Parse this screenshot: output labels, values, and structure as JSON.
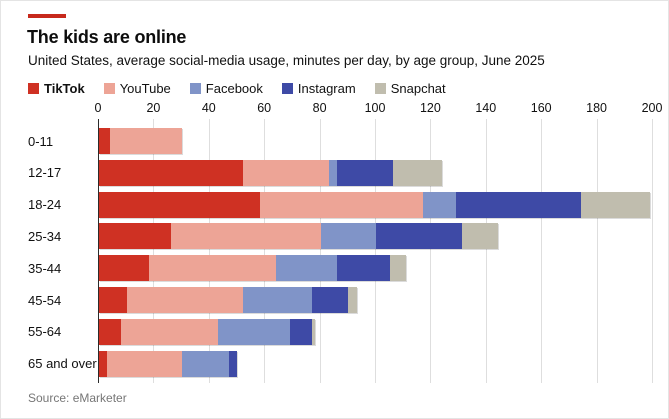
{
  "header": {
    "accent_color": "#c7291c",
    "title": "The kids are online",
    "subtitle": "United States, average social-media usage, minutes per day, by age group, June 2025"
  },
  "source": "Source: eMarketer",
  "chart_data": {
    "type": "bar",
    "orientation": "horizontal",
    "stacked": true,
    "title": "The kids are online",
    "subtitle": "United States, average social-media usage, minutes per day, by age group, June 2025",
    "legend_position": "top",
    "grid": true,
    "categories": [
      "0-11",
      "12-17",
      "18-24",
      "25-34",
      "35-44",
      "45-54",
      "55-64",
      "65 and over"
    ],
    "series": [
      {
        "name": "TikTok",
        "color": "#cf3123",
        "values": [
          4,
          52,
          58,
          26,
          18,
          10,
          8,
          3
        ]
      },
      {
        "name": "YouTube",
        "color": "#eda496",
        "values": [
          26,
          31,
          59,
          54,
          46,
          42,
          35,
          27
        ]
      },
      {
        "name": "Facebook",
        "color": "#8094c8",
        "values": [
          0,
          3,
          12,
          20,
          22,
          25,
          26,
          17
        ]
      },
      {
        "name": "Instagram",
        "color": "#3e4aa6",
        "values": [
          0,
          20,
          45,
          31,
          19,
          13,
          8,
          3
        ]
      },
      {
        "name": "Snapchat",
        "color": "#c0bdae",
        "values": [
          0,
          18,
          25,
          13,
          6,
          3,
          1,
          0
        ]
      }
    ],
    "x_axis": {
      "min": 0,
      "max": 200,
      "tick_interval": 20,
      "ticks": [
        0,
        20,
        40,
        60,
        80,
        100,
        120,
        140,
        160,
        180,
        200
      ]
    }
  }
}
